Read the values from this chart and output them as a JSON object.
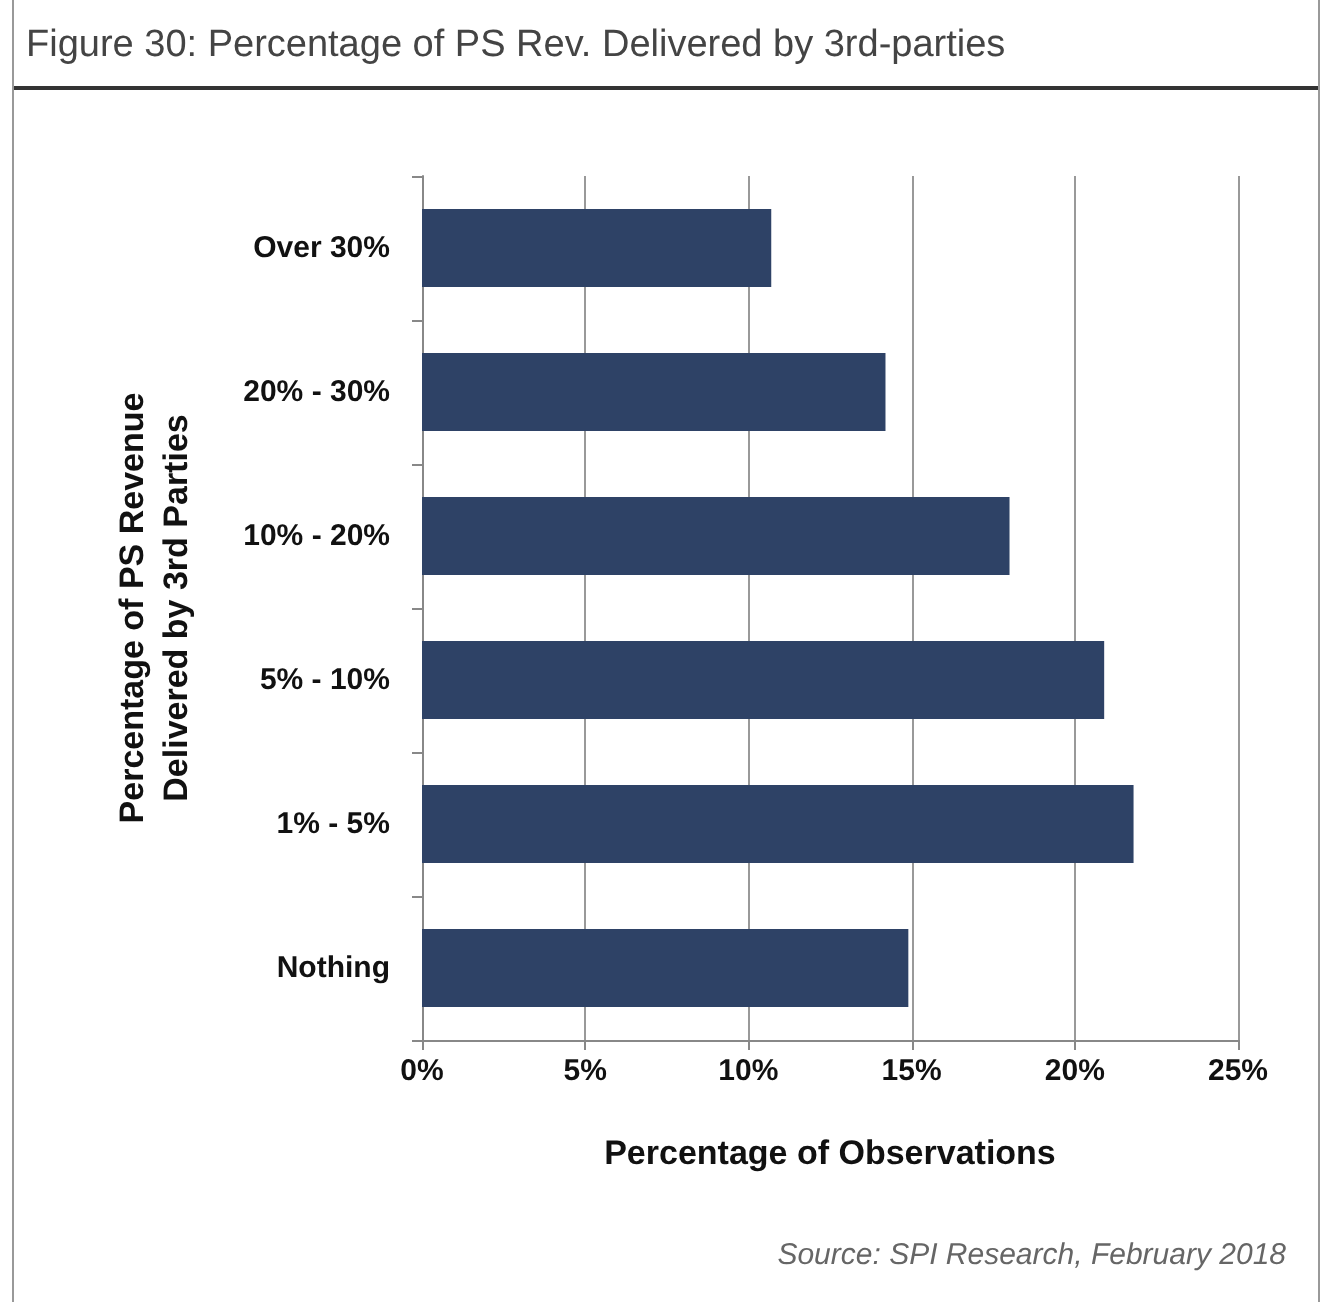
{
  "chart_data": {
    "type": "bar",
    "orientation": "horizontal",
    "title": "Figure 30:  Percentage of PS Rev. Delivered by 3rd-parties",
    "categories": [
      "Over 30%",
      "20% - 30%",
      "10% - 20%",
      "5% - 10%",
      "1% - 5%",
      "Nothing"
    ],
    "values": [
      10.7,
      14.2,
      18.0,
      20.9,
      21.8,
      14.9
    ],
    "color": "#2e4266",
    "xlim": [
      0,
      25
    ],
    "xticks": [
      {
        "value": 0,
        "label": "0%"
      },
      {
        "value": 5,
        "label": "5%"
      },
      {
        "value": 10,
        "label": "10%"
      },
      {
        "value": 15,
        "label": "15%"
      },
      {
        "value": 20,
        "label": "20%"
      },
      {
        "value": 25,
        "label": "25%"
      }
    ],
    "xlabel": "Percentage of Observations",
    "ylabel": "Percentage of PS Revenue\nDelivered by 3rd Parties",
    "grid": "x",
    "annotations": [
      "Source: SPI Research, February 2018"
    ]
  }
}
